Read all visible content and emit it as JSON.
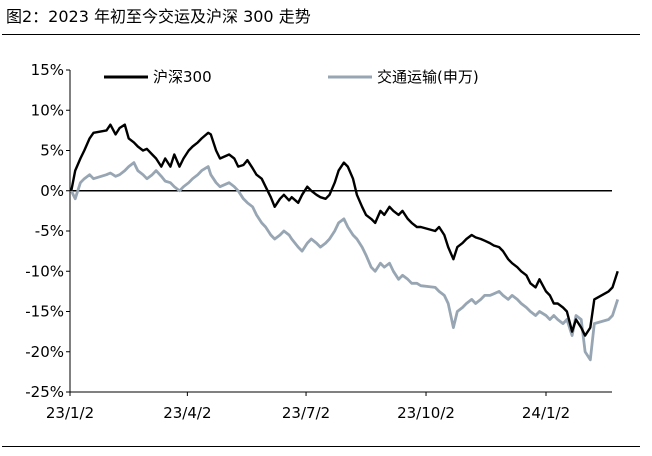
{
  "figure": {
    "title": "图2：2023 年初至今交运及沪深 300 走势"
  },
  "colors": {
    "hs300": "#000000",
    "transport": "#98a6b4",
    "axis": "#000000"
  },
  "chart_data": {
    "type": "line",
    "title": "",
    "xlabel": "",
    "ylabel": "",
    "ylim": [
      -0.25,
      0.15
    ],
    "xlim": [
      "2023-01-02",
      "2024-02-26"
    ],
    "y_ticks": [
      0.15,
      0.1,
      0.05,
      0.0,
      -0.05,
      -0.1,
      -0.15,
      -0.2,
      -0.25
    ],
    "y_tick_labels": [
      "15%",
      "10%",
      "5%",
      "0%",
      "-5%",
      "-10%",
      "-15%",
      "-20%",
      "-25%"
    ],
    "x_ticks": [
      "2023-01-02",
      "2023-04-02",
      "2023-07-02",
      "2023-10-02",
      "2024-01-02"
    ],
    "x_tick_labels": [
      "23/1/2",
      "23/4/2",
      "23/7/2",
      "23/10/2",
      "24/1/2"
    ],
    "grid": false,
    "legend_position": "top",
    "series": [
      {
        "name": "沪深300",
        "color": "#000000",
        "points": [
          [
            "2023-01-03",
            0.0
          ],
          [
            "2023-01-06",
            0.025
          ],
          [
            "2023-01-10",
            0.04
          ],
          [
            "2023-01-13",
            0.05
          ],
          [
            "2023-01-17",
            0.065
          ],
          [
            "2023-01-20",
            0.072
          ],
          [
            "2023-01-30",
            0.075
          ],
          [
            "2023-02-02",
            0.082
          ],
          [
            "2023-02-06",
            0.07
          ],
          [
            "2023-02-09",
            0.078
          ],
          [
            "2023-02-13",
            0.082
          ],
          [
            "2023-02-16",
            0.065
          ],
          [
            "2023-02-20",
            0.06
          ],
          [
            "2023-02-23",
            0.055
          ],
          [
            "2023-02-27",
            0.05
          ],
          [
            "2023-03-02",
            0.052
          ],
          [
            "2023-03-06",
            0.045
          ],
          [
            "2023-03-09",
            0.04
          ],
          [
            "2023-03-13",
            0.03
          ],
          [
            "2023-03-16",
            0.04
          ],
          [
            "2023-03-20",
            0.03
          ],
          [
            "2023-03-23",
            0.045
          ],
          [
            "2023-03-27",
            0.03
          ],
          [
            "2023-03-30",
            0.04
          ],
          [
            "2023-04-03",
            0.05
          ],
          [
            "2023-04-06",
            0.055
          ],
          [
            "2023-04-10",
            0.06
          ],
          [
            "2023-04-13",
            0.065
          ],
          [
            "2023-04-18",
            0.072
          ],
          [
            "2023-04-20",
            0.07
          ],
          [
            "2023-04-24",
            0.05
          ],
          [
            "2023-04-27",
            0.04
          ],
          [
            "2023-05-04",
            0.045
          ],
          [
            "2023-05-08",
            0.04
          ],
          [
            "2023-05-11",
            0.03
          ],
          [
            "2023-05-15",
            0.032
          ],
          [
            "2023-05-18",
            0.038
          ],
          [
            "2023-05-22",
            0.028
          ],
          [
            "2023-05-25",
            0.02
          ],
          [
            "2023-05-29",
            0.015
          ],
          [
            "2023-06-01",
            0.005
          ],
          [
            "2023-06-05",
            -0.008
          ],
          [
            "2023-06-08",
            -0.02
          ],
          [
            "2023-06-12",
            -0.01
          ],
          [
            "2023-06-15",
            -0.005
          ],
          [
            "2023-06-19",
            -0.012
          ],
          [
            "2023-06-21",
            -0.008
          ],
          [
            "2023-06-26",
            -0.015
          ],
          [
            "2023-06-29",
            -0.005
          ],
          [
            "2023-07-03",
            0.005
          ],
          [
            "2023-07-06",
            0.0
          ],
          [
            "2023-07-10",
            -0.005
          ],
          [
            "2023-07-13",
            -0.008
          ],
          [
            "2023-07-17",
            -0.01
          ],
          [
            "2023-07-20",
            -0.005
          ],
          [
            "2023-07-24",
            0.01
          ],
          [
            "2023-07-27",
            0.025
          ],
          [
            "2023-07-31",
            0.035
          ],
          [
            "2023-08-03",
            0.03
          ],
          [
            "2023-08-07",
            0.015
          ],
          [
            "2023-08-10",
            -0.005
          ],
          [
            "2023-08-14",
            -0.02
          ],
          [
            "2023-08-17",
            -0.03
          ],
          [
            "2023-08-21",
            -0.035
          ],
          [
            "2023-08-24",
            -0.04
          ],
          [
            "2023-08-28",
            -0.025
          ],
          [
            "2023-08-31",
            -0.03
          ],
          [
            "2023-09-04",
            -0.02
          ],
          [
            "2023-09-07",
            -0.025
          ],
          [
            "2023-09-11",
            -0.03
          ],
          [
            "2023-09-14",
            -0.025
          ],
          [
            "2023-09-18",
            -0.035
          ],
          [
            "2023-09-21",
            -0.04
          ],
          [
            "2023-09-25",
            -0.045
          ],
          [
            "2023-09-28",
            -0.045
          ],
          [
            "2023-10-09",
            -0.05
          ],
          [
            "2023-10-12",
            -0.045
          ],
          [
            "2023-10-16",
            -0.055
          ],
          [
            "2023-10-19",
            -0.07
          ],
          [
            "2023-10-23",
            -0.085
          ],
          [
            "2023-10-26",
            -0.07
          ],
          [
            "2023-10-30",
            -0.065
          ],
          [
            "2023-11-02",
            -0.06
          ],
          [
            "2023-11-06",
            -0.055
          ],
          [
            "2023-11-09",
            -0.058
          ],
          [
            "2023-11-13",
            -0.06
          ],
          [
            "2023-11-16",
            -0.062
          ],
          [
            "2023-11-20",
            -0.065
          ],
          [
            "2023-11-23",
            -0.068
          ],
          [
            "2023-11-27",
            -0.07
          ],
          [
            "2023-11-30",
            -0.075
          ],
          [
            "2023-12-04",
            -0.085
          ],
          [
            "2023-12-07",
            -0.09
          ],
          [
            "2023-12-11",
            -0.095
          ],
          [
            "2023-12-14",
            -0.1
          ],
          [
            "2023-12-18",
            -0.105
          ],
          [
            "2023-12-21",
            -0.115
          ],
          [
            "2023-12-25",
            -0.12
          ],
          [
            "2023-12-28",
            -0.11
          ],
          [
            "2024-01-02",
            -0.125
          ],
          [
            "2024-01-05",
            -0.13
          ],
          [
            "2024-01-08",
            -0.14
          ],
          [
            "2024-01-11",
            -0.14
          ],
          [
            "2024-01-15",
            -0.145
          ],
          [
            "2024-01-18",
            -0.15
          ],
          [
            "2024-01-22",
            -0.175
          ],
          [
            "2024-01-25",
            -0.16
          ],
          [
            "2024-01-29",
            -0.17
          ],
          [
            "2024-02-01",
            -0.18
          ],
          [
            "2024-02-05",
            -0.17
          ],
          [
            "2024-02-08",
            -0.135
          ],
          [
            "2024-02-19",
            -0.125
          ],
          [
            "2024-02-22",
            -0.12
          ],
          [
            "2024-02-26",
            -0.1
          ]
        ]
      },
      {
        "name": "交通运输(申万)",
        "color": "#98a6b4",
        "points": [
          [
            "2023-01-03",
            0.0
          ],
          [
            "2023-01-06",
            -0.01
          ],
          [
            "2023-01-10",
            0.01
          ],
          [
            "2023-01-13",
            0.015
          ],
          [
            "2023-01-17",
            0.02
          ],
          [
            "2023-01-20",
            0.015
          ],
          [
            "2023-01-30",
            0.02
          ],
          [
            "2023-02-02",
            0.022
          ],
          [
            "2023-02-06",
            0.018
          ],
          [
            "2023-02-09",
            0.02
          ],
          [
            "2023-02-13",
            0.025
          ],
          [
            "2023-02-16",
            0.03
          ],
          [
            "2023-02-20",
            0.035
          ],
          [
            "2023-02-23",
            0.025
          ],
          [
            "2023-02-27",
            0.02
          ],
          [
            "2023-03-02",
            0.015
          ],
          [
            "2023-03-06",
            0.02
          ],
          [
            "2023-03-09",
            0.025
          ],
          [
            "2023-03-13",
            0.018
          ],
          [
            "2023-03-16",
            0.012
          ],
          [
            "2023-03-20",
            0.01
          ],
          [
            "2023-03-23",
            0.005
          ],
          [
            "2023-03-27",
            0.0
          ],
          [
            "2023-03-30",
            0.005
          ],
          [
            "2023-04-03",
            0.01
          ],
          [
            "2023-04-06",
            0.015
          ],
          [
            "2023-04-10",
            0.02
          ],
          [
            "2023-04-13",
            0.025
          ],
          [
            "2023-04-18",
            0.03
          ],
          [
            "2023-04-20",
            0.02
          ],
          [
            "2023-04-24",
            0.01
          ],
          [
            "2023-04-27",
            0.005
          ],
          [
            "2023-05-04",
            0.01
          ],
          [
            "2023-05-08",
            0.005
          ],
          [
            "2023-05-11",
            0.0
          ],
          [
            "2023-05-15",
            -0.01
          ],
          [
            "2023-05-18",
            -0.015
          ],
          [
            "2023-05-22",
            -0.02
          ],
          [
            "2023-05-25",
            -0.03
          ],
          [
            "2023-05-29",
            -0.04
          ],
          [
            "2023-06-01",
            -0.045
          ],
          [
            "2023-06-05",
            -0.055
          ],
          [
            "2023-06-08",
            -0.06
          ],
          [
            "2023-06-12",
            -0.055
          ],
          [
            "2023-06-15",
            -0.05
          ],
          [
            "2023-06-19",
            -0.055
          ],
          [
            "2023-06-21",
            -0.06
          ],
          [
            "2023-06-26",
            -0.07
          ],
          [
            "2023-06-29",
            -0.075
          ],
          [
            "2023-07-03",
            -0.065
          ],
          [
            "2023-07-06",
            -0.06
          ],
          [
            "2023-07-10",
            -0.065
          ],
          [
            "2023-07-13",
            -0.07
          ],
          [
            "2023-07-17",
            -0.065
          ],
          [
            "2023-07-20",
            -0.06
          ],
          [
            "2023-07-24",
            -0.05
          ],
          [
            "2023-07-27",
            -0.04
          ],
          [
            "2023-07-31",
            -0.035
          ],
          [
            "2023-08-03",
            -0.045
          ],
          [
            "2023-08-07",
            -0.055
          ],
          [
            "2023-08-10",
            -0.06
          ],
          [
            "2023-08-14",
            -0.07
          ],
          [
            "2023-08-17",
            -0.08
          ],
          [
            "2023-08-21",
            -0.095
          ],
          [
            "2023-08-24",
            -0.1
          ],
          [
            "2023-08-28",
            -0.09
          ],
          [
            "2023-08-31",
            -0.095
          ],
          [
            "2023-09-04",
            -0.09
          ],
          [
            "2023-09-07",
            -0.1
          ],
          [
            "2023-09-11",
            -0.11
          ],
          [
            "2023-09-14",
            -0.105
          ],
          [
            "2023-09-18",
            -0.11
          ],
          [
            "2023-09-21",
            -0.115
          ],
          [
            "2023-09-25",
            -0.115
          ],
          [
            "2023-09-28",
            -0.118
          ],
          [
            "2023-10-09",
            -0.12
          ],
          [
            "2023-10-12",
            -0.125
          ],
          [
            "2023-10-16",
            -0.13
          ],
          [
            "2023-10-19",
            -0.14
          ],
          [
            "2023-10-23",
            -0.17
          ],
          [
            "2023-10-26",
            -0.15
          ],
          [
            "2023-10-30",
            -0.145
          ],
          [
            "2023-11-02",
            -0.14
          ],
          [
            "2023-11-06",
            -0.135
          ],
          [
            "2023-11-09",
            -0.14
          ],
          [
            "2023-11-13",
            -0.135
          ],
          [
            "2023-11-16",
            -0.13
          ],
          [
            "2023-11-20",
            -0.13
          ],
          [
            "2023-11-23",
            -0.128
          ],
          [
            "2023-11-27",
            -0.125
          ],
          [
            "2023-11-30",
            -0.13
          ],
          [
            "2023-12-04",
            -0.135
          ],
          [
            "2023-12-07",
            -0.13
          ],
          [
            "2023-12-11",
            -0.135
          ],
          [
            "2023-12-14",
            -0.14
          ],
          [
            "2023-12-18",
            -0.145
          ],
          [
            "2023-12-21",
            -0.15
          ],
          [
            "2023-12-25",
            -0.155
          ],
          [
            "2023-12-28",
            -0.15
          ],
          [
            "2024-01-02",
            -0.155
          ],
          [
            "2024-01-05",
            -0.16
          ],
          [
            "2024-01-08",
            -0.155
          ],
          [
            "2024-01-11",
            -0.16
          ],
          [
            "2024-01-15",
            -0.165
          ],
          [
            "2024-01-18",
            -0.16
          ],
          [
            "2024-01-22",
            -0.18
          ],
          [
            "2024-01-25",
            -0.155
          ],
          [
            "2024-01-29",
            -0.16
          ],
          [
            "2024-02-01",
            -0.2
          ],
          [
            "2024-02-05",
            -0.21
          ],
          [
            "2024-02-08",
            -0.165
          ],
          [
            "2024-02-19",
            -0.16
          ],
          [
            "2024-02-22",
            -0.155
          ],
          [
            "2024-02-26",
            -0.135
          ]
        ]
      }
    ]
  }
}
